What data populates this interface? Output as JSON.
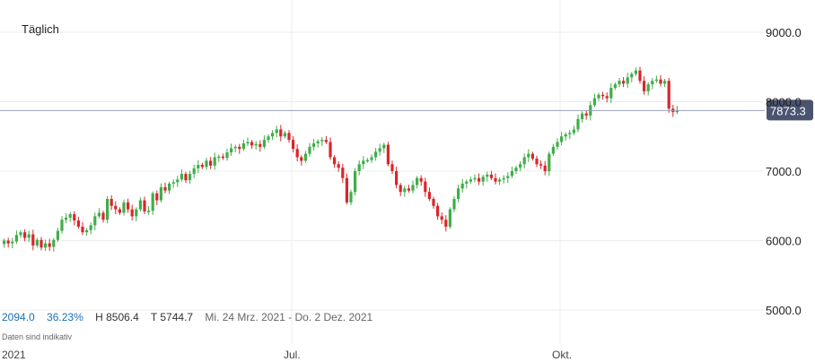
{
  "interval_label": "Täglich",
  "stats": {
    "change": "2094.0",
    "change_pct": "36.23%",
    "high": "H 8506.4",
    "low": "T 5744.7",
    "range": "Mi. 24 Mrz. 2021 - Do. 2 Dez. 2021"
  },
  "disclaimer": "Daten sind indikativ",
  "colors": {
    "up": "#3fae49",
    "down": "#d9262b",
    "price_line": "#9aa0b8",
    "price_tag": "#4a5370"
  },
  "chart_data": {
    "type": "candlestick",
    "title": "",
    "ylim": [
      5000,
      9500
    ],
    "yticks": [
      5000,
      6000,
      7000,
      8000,
      9000
    ],
    "ytick_labels": [
      "5000.0",
      "6000.0",
      "7000.0",
      "8000.0",
      "9000.0"
    ],
    "xticks": [
      {
        "index": 0,
        "label": "2021"
      },
      {
        "index": 70,
        "label": "Jul."
      },
      {
        "index": 135,
        "label": "Okt."
      }
    ],
    "current_price": 7873.3,
    "current_price_label": "7873.3",
    "grid": true,
    "close": [
      6000,
      5960,
      5985,
      6080,
      6120,
      6040,
      6090,
      5930,
      6010,
      5900,
      5960,
      5910,
      6010,
      6140,
      6300,
      6330,
      6380,
      6290,
      6200,
      6120,
      6150,
      6220,
      6350,
      6400,
      6300,
      6600,
      6500,
      6450,
      6400,
      6550,
      6450,
      6350,
      6450,
      6580,
      6420,
      6430,
      6680,
      6580,
      6770,
      6720,
      6820,
      6840,
      6880,
      6960,
      6870,
      6960,
      7040,
      7090,
      7060,
      7150,
      7080,
      7200,
      7210,
      7190,
      7270,
      7330,
      7350,
      7320,
      7400,
      7420,
      7370,
      7390,
      7350,
      7450,
      7500,
      7550,
      7600,
      7500,
      7550,
      7450,
      7320,
      7200,
      7150,
      7250,
      7350,
      7400,
      7430,
      7450,
      7420,
      7200,
      7100,
      7050,
      6900,
      6550,
      6700,
      7000,
      7100,
      7150,
      7160,
      7200,
      7280,
      7330,
      7380,
      7100,
      7000,
      6800,
      6700,
      6750,
      6720,
      6800,
      6900,
      6850,
      6700,
      6600,
      6500,
      6350,
      6300,
      6200,
      6450,
      6600,
      6750,
      6820,
      6850,
      6880,
      6900,
      6850,
      6920,
      6950,
      6900,
      6850,
      6880,
      6900,
      6930,
      7000,
      7050,
      7100,
      7200,
      7250,
      7180,
      7100,
      7080,
      7000,
      7250,
      7350,
      7420,
      7500,
      7530,
      7550,
      7600,
      7750,
      7830,
      7800,
      7950,
      8050,
      8100,
      8080,
      8050,
      8200,
      8250,
      8300,
      8260,
      8350,
      8400,
      8450,
      8300,
      8150,
      8250,
      8300,
      8320,
      8260,
      8300,
      7900,
      7850,
      7873.3
    ],
    "open": [
      5950,
      6000,
      5960,
      5985,
      6080,
      6120,
      6040,
      6090,
      5930,
      6010,
      5900,
      5960,
      5910,
      6010,
      6140,
      6300,
      6330,
      6380,
      6290,
      6200,
      6120,
      6150,
      6220,
      6350,
      6400,
      6300,
      6600,
      6500,
      6450,
      6400,
      6550,
      6450,
      6350,
      6450,
      6580,
      6420,
      6430,
      6680,
      6580,
      6770,
      6720,
      6820,
      6840,
      6880,
      6960,
      6870,
      6960,
      7040,
      7090,
      7060,
      7150,
      7080,
      7200,
      7210,
      7190,
      7270,
      7330,
      7350,
      7320,
      7400,
      7420,
      7370,
      7390,
      7350,
      7450,
      7500,
      7550,
      7600,
      7500,
      7550,
      7450,
      7320,
      7200,
      7150,
      7250,
      7350,
      7400,
      7430,
      7450,
      7420,
      7200,
      7100,
      7050,
      6900,
      6550,
      6700,
      7000,
      7100,
      7150,
      7160,
      7200,
      7280,
      7330,
      7380,
      7100,
      7000,
      6800,
      6700,
      6750,
      6720,
      6800,
      6900,
      6850,
      6700,
      6600,
      6500,
      6350,
      6300,
      6200,
      6450,
      6600,
      6750,
      6820,
      6850,
      6880,
      6900,
      6850,
      6920,
      6950,
      6900,
      6850,
      6880,
      6900,
      6930,
      7000,
      7050,
      7100,
      7200,
      7250,
      7180,
      7100,
      7080,
      7000,
      7250,
      7350,
      7420,
      7500,
      7530,
      7550,
      7600,
      7750,
      7830,
      7800,
      7950,
      8050,
      8100,
      8080,
      8050,
      8200,
      8250,
      8300,
      8260,
      8350,
      8400,
      8450,
      8300,
      8150,
      8250,
      8300,
      8320,
      8260,
      8300,
      7900,
      7850
    ]
  }
}
